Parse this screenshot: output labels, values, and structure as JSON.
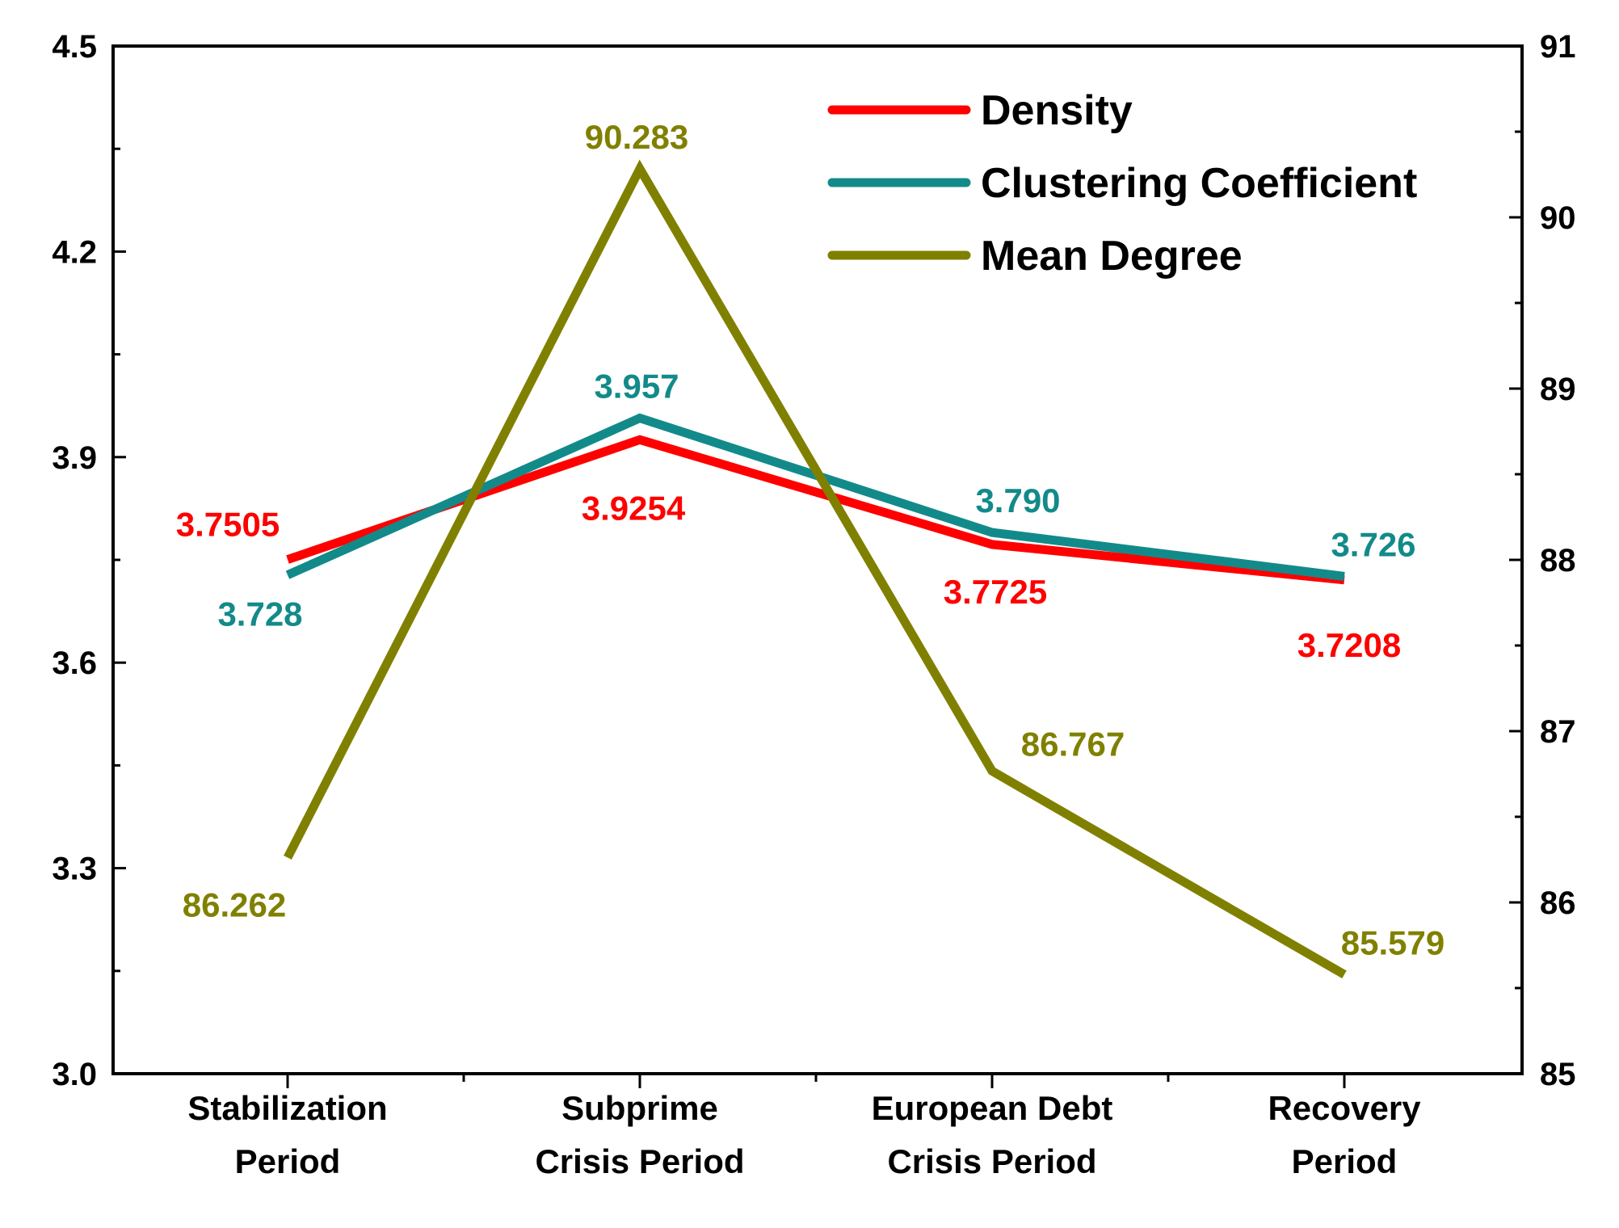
{
  "chart_data": {
    "type": "line",
    "categories": [
      [
        "Stabilization",
        "Period"
      ],
      [
        "Subprime",
        "Crisis Period"
      ],
      [
        "European Debt",
        "Crisis Period"
      ],
      [
        "Recovery",
        "Period"
      ]
    ],
    "y_left": {
      "min": 3.0,
      "max": 4.5,
      "ticks": [
        "3.0",
        "3.3",
        "3.6",
        "3.9",
        "4.2",
        "4.5"
      ]
    },
    "y_right": {
      "min": 85,
      "max": 91,
      "ticks": [
        "85",
        "86",
        "87",
        "88",
        "89",
        "90",
        "91"
      ]
    },
    "series": [
      {
        "name": "Density",
        "axis": "left",
        "color": "#ff0000",
        "values": [
          3.7505,
          3.9254,
          3.7725,
          3.7208
        ],
        "labels": [
          "3.7505",
          "3.9254",
          "3.7725",
          "3.7208"
        ]
      },
      {
        "name": "Clustering Coefficient",
        "axis": "left",
        "color": "#138a8a",
        "values": [
          3.728,
          3.957,
          3.79,
          3.726
        ],
        "labels": [
          "3.728",
          "3.957",
          "3.790",
          "3.726"
        ]
      },
      {
        "name": "Mean Degree",
        "axis": "right",
        "color": "#808000",
        "values": [
          86.262,
          90.283,
          86.767,
          85.579
        ],
        "labels": [
          "86.262",
          "90.283",
          "86.767",
          "85.579"
        ]
      }
    ],
    "legend_position": "top-right",
    "grid": false
  }
}
